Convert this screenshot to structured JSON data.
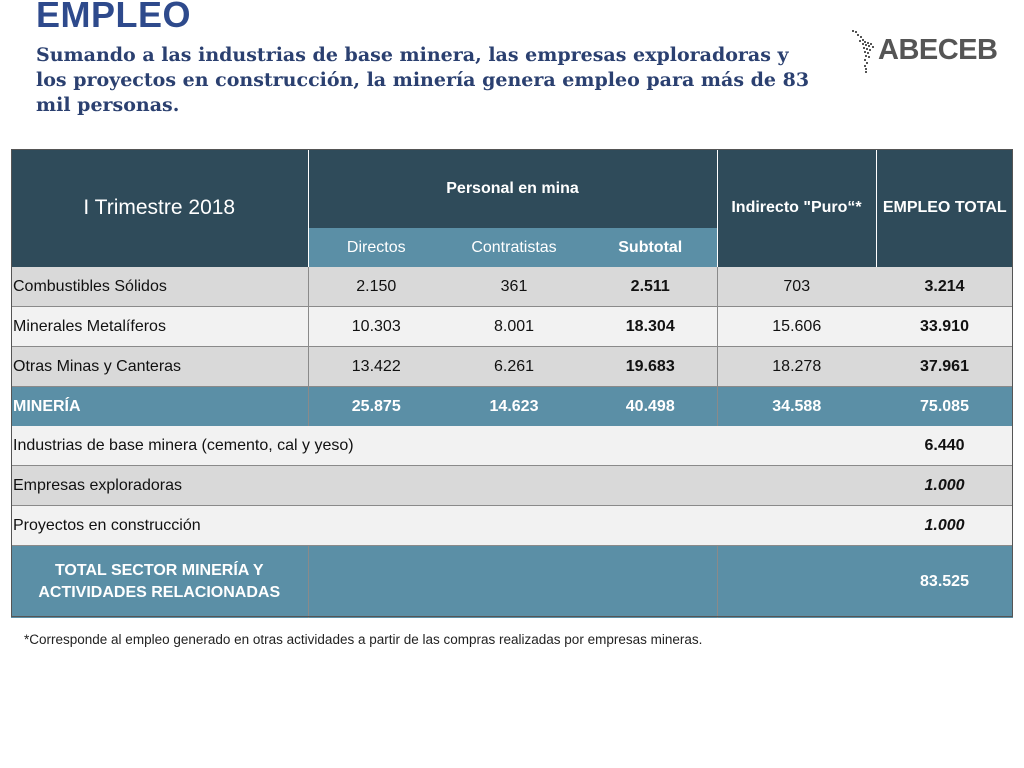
{
  "title": "EMPLEO",
  "subtitle": "Sumando a las industrias de base minera, las empresas exploradoras y los proyectos en construcción, la minería genera empleo para más de 83 mil personas.",
  "logo": {
    "text": "ABECEB"
  },
  "table": {
    "period": "I Trimestre 2018",
    "group_header": "Personal en mina",
    "indirect_header": "Indirecto \"Puro“*",
    "total_header": "EMPLEO TOTAL",
    "sub_headers": {
      "directos": "Directos",
      "contratistas": "Contratistas",
      "subtotal": "Subtotal"
    },
    "rows": [
      {
        "label": "Combustibles Sólidos",
        "directos": "2.150",
        "contratistas": "361",
        "subtotal": "2.511",
        "indirecto": "703",
        "total": "3.214"
      },
      {
        "label": "Minerales Metalíferos",
        "directos": "10.303",
        "contratistas": "8.001",
        "subtotal": "18.304",
        "indirecto": "15.606",
        "total": "33.910"
      },
      {
        "label": "Otras Minas y Canteras",
        "directos": "13.422",
        "contratistas": "6.261",
        "subtotal": "19.683",
        "indirecto": "18.278",
        "total": "37.961"
      }
    ],
    "mineria": {
      "label": "MINERÍA",
      "directos": "25.875",
      "contratistas": "14.623",
      "subtotal": "40.498",
      "indirecto": "34.588",
      "total": "75.085"
    },
    "extra_rows": [
      {
        "label": "Industrias de base minera (cemento, cal y yeso)",
        "total": "6.440"
      },
      {
        "label": "Empresas exploradoras",
        "total": "1.000"
      },
      {
        "label": "Proyectos en construcción",
        "total": "1.000"
      }
    ],
    "grand_total": {
      "label_line1": "TOTAL SECTOR MINERÍA Y",
      "label_line2": "ACTIVIDADES RELACIONADAS",
      "total": "83.525"
    }
  },
  "footnote": "*Corresponde al empleo generado en otras actividades a partir de las compras realizadas por empresas mineras."
}
